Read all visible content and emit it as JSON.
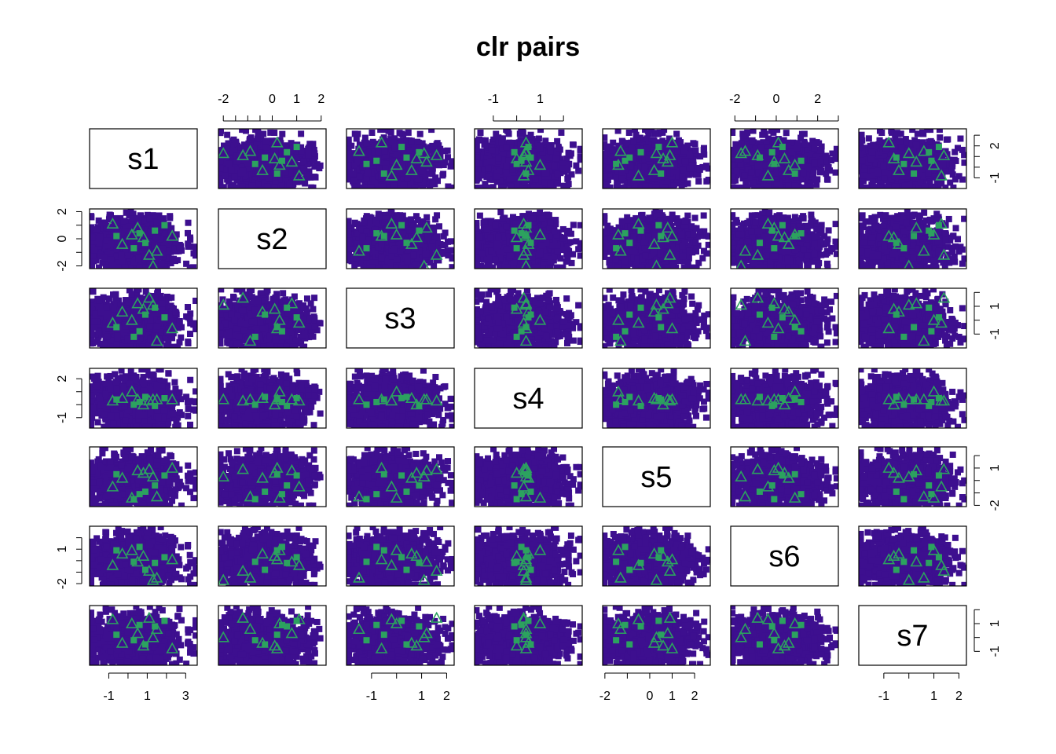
{
  "chart_data": {
    "type": "scatter",
    "title": "clr pairs",
    "variables": [
      "s1",
      "s2",
      "s3",
      "s4",
      "s5",
      "s6",
      "s7"
    ],
    "ranges": {
      "s1": [
        -2.0,
        3.6
      ],
      "s2": [
        -2.2,
        2.2
      ],
      "s3": [
        -2.0,
        2.3
      ],
      "s4": [
        -1.8,
        2.8
      ],
      "s5": [
        -2.1,
        2.7
      ],
      "s6": [
        -2.2,
        3.0
      ],
      "s7": [
        -2.0,
        2.3
      ]
    },
    "axes": {
      "top": {
        "s2": [
          {
            "v": -2,
            "label": "-2"
          },
          {
            "v": -1.5,
            "label": ""
          },
          {
            "v": -1,
            "label": ""
          },
          {
            "v": -0.5,
            "label": ""
          },
          {
            "v": 0,
            "label": "0"
          },
          {
            "v": 1,
            "label": "1"
          },
          {
            "v": 2,
            "label": "2"
          }
        ],
        "s4": [
          {
            "v": -1,
            "label": "-1"
          },
          {
            "v": 0,
            "label": ""
          },
          {
            "v": 1,
            "label": "1"
          },
          {
            "v": 2,
            "label": ""
          }
        ],
        "s6": [
          {
            "v": -2,
            "label": "-2"
          },
          {
            "v": -1,
            "label": ""
          },
          {
            "v": 0,
            "label": "0"
          },
          {
            "v": 1,
            "label": ""
          },
          {
            "v": 2,
            "label": "2"
          },
          {
            "v": 3,
            "label": ""
          }
        ]
      },
      "bottom": {
        "s1": [
          {
            "v": -1,
            "label": "-1"
          },
          {
            "v": 0,
            "label": ""
          },
          {
            "v": 1,
            "label": "1"
          },
          {
            "v": 2,
            "label": ""
          },
          {
            "v": 3,
            "label": "3"
          }
        ],
        "s3": [
          {
            "v": -1,
            "label": "-1"
          },
          {
            "v": 0,
            "label": ""
          },
          {
            "v": 1,
            "label": "1"
          },
          {
            "v": 2,
            "label": "2"
          }
        ],
        "s5": [
          {
            "v": -2,
            "label": "-2"
          },
          {
            "v": -1,
            "label": ""
          },
          {
            "v": 0,
            "label": "0"
          },
          {
            "v": 1,
            "label": "1"
          },
          {
            "v": 2,
            "label": "2"
          }
        ],
        "s7": [
          {
            "v": -1,
            "label": "-1"
          },
          {
            "v": 0,
            "label": ""
          },
          {
            "v": 1,
            "label": "1"
          },
          {
            "v": 2,
            "label": "2"
          }
        ]
      },
      "left": {
        "s2": [
          {
            "v": 2,
            "label": "2"
          },
          {
            "v": 1,
            "label": ""
          },
          {
            "v": 0,
            "label": "0"
          },
          {
            "v": -1,
            "label": ""
          },
          {
            "v": -2,
            "label": "-2"
          }
        ],
        "s4": [
          {
            "v": 2,
            "label": "2"
          },
          {
            "v": 1,
            "label": ""
          },
          {
            "v": 0,
            "label": ""
          },
          {
            "v": -1,
            "label": "-1"
          }
        ],
        "s6": [
          {
            "v": 2,
            "label": ""
          },
          {
            "v": 1,
            "label": "1"
          },
          {
            "v": 0,
            "label": ""
          },
          {
            "v": -1,
            "label": ""
          },
          {
            "v": -2,
            "label": "-2"
          }
        ]
      },
      "right": {
        "s1": [
          {
            "v": 3,
            "label": ""
          },
          {
            "v": 2,
            "label": "2"
          },
          {
            "v": 1,
            "label": ""
          },
          {
            "v": 0,
            "label": ""
          },
          {
            "v": -1,
            "label": "-1"
          }
        ],
        "s3": [
          {
            "v": 2,
            "label": ""
          },
          {
            "v": 1,
            "label": "1"
          },
          {
            "v": 0,
            "label": ""
          },
          {
            "v": -1,
            "label": "-1"
          }
        ],
        "s5": [
          {
            "v": 2,
            "label": ""
          },
          {
            "v": 1,
            "label": "1"
          },
          {
            "v": 0,
            "label": ""
          },
          {
            "v": -1,
            "label": ""
          },
          {
            "v": -2,
            "label": "-2"
          }
        ],
        "s7": [
          {
            "v": 2,
            "label": ""
          },
          {
            "v": 1,
            "label": "1"
          },
          {
            "v": 0,
            "label": ""
          },
          {
            "v": -1,
            "label": "-1"
          }
        ]
      }
    },
    "series": [
      {
        "marker": "filled-square",
        "color": "#3d0f8f",
        "n_points": 1200,
        "summary": "dense bulk cloud of observations"
      },
      {
        "marker": "filled-square",
        "color": "#2ca25f",
        "values": [
          [
            0.9,
            -0.3,
            0.4,
            0.6,
            -0.9,
            -0.8,
            -0.5
          ],
          [
            -0.6,
            0.2,
            -0.5,
            0.4,
            0.5,
            0.9,
            0.2
          ],
          [
            1.4,
            0.6,
            0.9,
            -0.1,
            -0.4,
            -0.2,
            0.8
          ],
          [
            0.3,
            -0.7,
            -1.2,
            0.0,
            -1.5,
            -0.1,
            -0.2
          ],
          [
            1.9,
            1.0,
            0.2,
            0.5,
            0.4,
            0.3,
            1.2
          ],
          [
            0.6,
            0.4,
            -0.8,
            0.2,
            -1.1,
            1.2,
            0.9
          ]
        ]
      },
      {
        "marker": "open-triangle",
        "color": "#2ca25f",
        "values": [
          [
            0.5,
            0.8,
            1.2,
            0.4,
            0.8,
            -0.1,
            0.3
          ],
          [
            -0.3,
            -0.4,
            0.6,
            0.5,
            0.2,
            0.6,
            -0.4
          ],
          [
            1.1,
            -1.2,
            1.6,
            0.3,
            0.9,
            -0.9,
            1.4
          ],
          [
            2.3,
            0.2,
            -0.6,
            0.4,
            1.0,
            0.1,
            -0.8
          ],
          [
            0.2,
            0.3,
            0.0,
            1.0,
            -1.4,
            0.9,
            1.0
          ],
          [
            1.5,
            -0.9,
            -1.5,
            0.4,
            -1.3,
            -1.5,
            0.6
          ],
          [
            0.8,
            0.1,
            0.8,
            0.0,
            0.6,
            0.4,
            -0.6
          ],
          [
            -0.8,
            1.1,
            -0.2,
            0.3,
            -0.5,
            -0.4,
            1.3
          ],
          [
            1.3,
            -2.0,
            1.1,
            0.4,
            0.3,
            -1.7,
            0.0
          ]
        ]
      }
    ]
  }
}
